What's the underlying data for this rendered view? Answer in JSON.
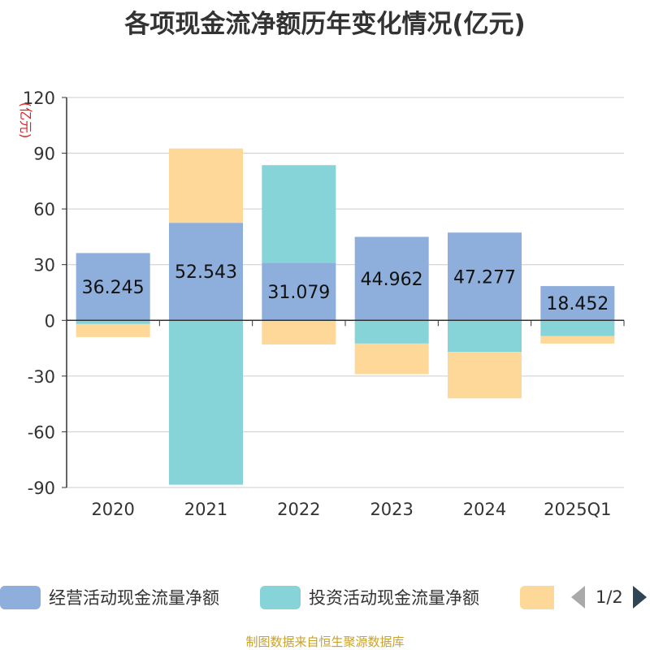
{
  "title": "各项现金流净额历年变化情况(亿元)",
  "source_note": "制图数据来自恒生聚源数据库",
  "legend": {
    "items": [
      {
        "label": "经营活动现金流量净额",
        "color": "#8eaedb"
      },
      {
        "label": "投资活动现金流量净额",
        "color": "#87d4d8"
      },
      {
        "label": "",
        "color": "#fdd899"
      }
    ],
    "page": "1/2"
  },
  "chart_data": {
    "type": "bar",
    "stacked": true,
    "title": "各项现金流净额历年变化情况(亿元)",
    "ylabel": "(亿元)",
    "ylabel_color": "#e02020",
    "ylim": [
      -90,
      120
    ],
    "yticks": [
      120,
      90,
      60,
      30,
      0,
      -30,
      -60,
      -90
    ],
    "categories": [
      "2020",
      "2021",
      "2022",
      "2023",
      "2024",
      "2025Q1"
    ],
    "grid": true,
    "legend_position": "bottom",
    "series": [
      {
        "name": "经营活动现金流量净额",
        "color": "#8eaedb",
        "values": [
          36.245,
          52.543,
          31.079,
          44.962,
          47.277,
          18.452
        ],
        "labels": [
          "36.245",
          "52.543",
          "31.079",
          "44.962",
          "47.277",
          "18.452"
        ]
      },
      {
        "name": "投资活动现金流量净额",
        "color": "#87d4d8",
        "values": [
          -2.0,
          -88.5,
          52.5,
          -12.5,
          -17.0,
          -8.5
        ]
      },
      {
        "name": "",
        "color": "#fdd899",
        "values": [
          -7.0,
          40.0,
          -13.0,
          -16.5,
          -25.0,
          -4.0
        ]
      }
    ]
  }
}
